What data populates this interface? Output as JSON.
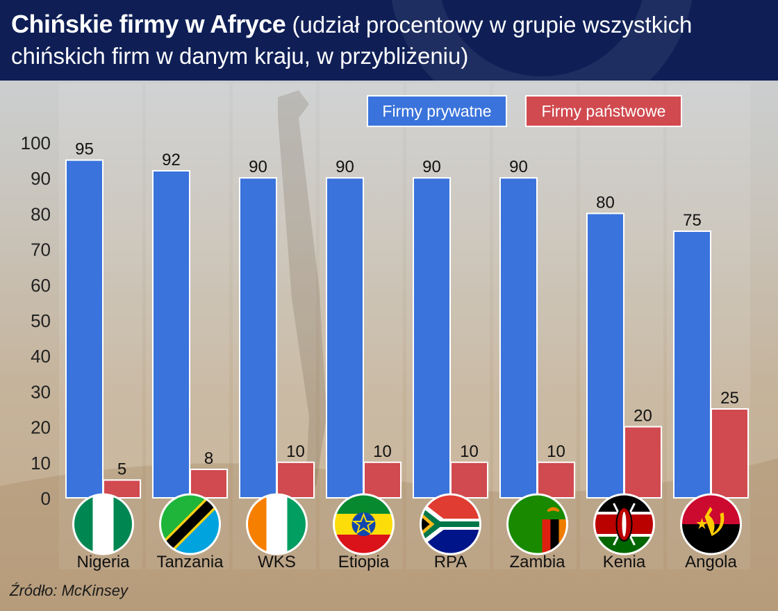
{
  "header": {
    "title_main": "Chińskie firmy w Afryce",
    "title_rest": "(udział procentowy w grupie wszystkich chińskich firm w danym kraju, w przybliżeniu)"
  },
  "source": "Źródło: McKinsey",
  "colors": {
    "private": "#3a73db",
    "state": "#d04a4f",
    "header_bg": "#0f1f56"
  },
  "chart_data": {
    "type": "bar",
    "categories": [
      "Nigeria",
      "Tanzania",
      "WKS",
      "Etiopia",
      "RPA",
      "Zambia",
      "Kenia",
      "Angola"
    ],
    "flags": [
      "nigeria-flag-icon",
      "tanzania-flag-icon",
      "ivory-coast-flag-icon",
      "ethiopia-flag-icon",
      "south-africa-flag-icon",
      "zambia-flag-icon",
      "kenya-flag-icon",
      "angola-flag-icon"
    ],
    "series": [
      {
        "name": "Firmy prywatne",
        "values": [
          95,
          92,
          90,
          90,
          90,
          90,
          80,
          75
        ]
      },
      {
        "name": "Firmy państwowe",
        "values": [
          5,
          8,
          10,
          10,
          10,
          10,
          20,
          25
        ]
      }
    ],
    "ylim": [
      0,
      100
    ],
    "yticks": [
      0,
      10,
      20,
      30,
      40,
      50,
      60,
      70,
      80,
      90,
      100
    ],
    "legend_position": "top-right",
    "grid": false,
    "data_labels": true
  }
}
